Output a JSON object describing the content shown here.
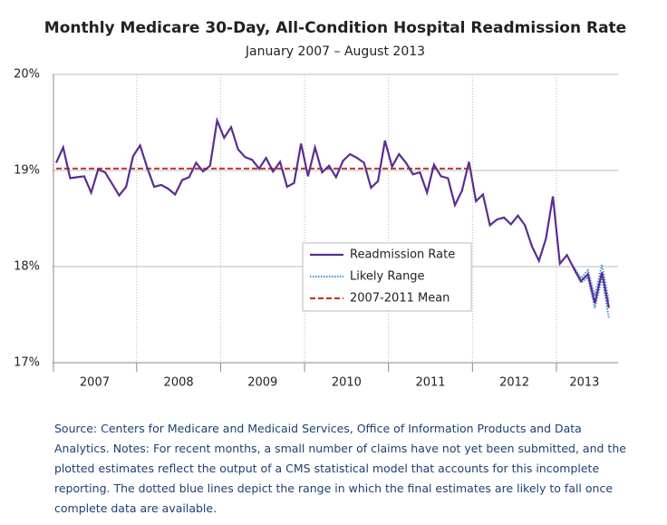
{
  "chart_data": {
    "type": "line",
    "title": "Monthly Medicare 30-Day, All-Condition Hospital Readmission Rate",
    "subtitle": "January 2007 – August 2013",
    "categories": [
      "2007",
      null,
      null,
      null,
      null,
      null,
      null,
      null,
      null,
      null,
      null,
      null,
      "2008",
      null,
      null,
      null,
      null,
      null,
      null,
      null,
      null,
      null,
      null,
      null,
      "2009",
      null,
      null,
      null,
      null,
      null,
      null,
      null,
      null,
      null,
      null,
      null,
      "2010",
      null,
      null,
      null,
      null,
      null,
      null,
      null,
      null,
      null,
      null,
      null,
      "2011",
      null,
      null,
      null,
      null,
      null,
      null,
      null,
      null,
      null,
      null,
      null,
      "2012",
      null,
      null,
      null,
      null,
      null,
      null,
      null,
      null,
      null,
      null,
      null,
      "2013",
      null,
      null,
      null,
      null,
      null,
      null,
      null
    ],
    "series": [
      {
        "name": "Readmission Rate",
        "color": "#5b2d91",
        "style": "solid",
        "values": [
          19.08,
          19.24,
          18.92,
          18.93,
          18.94,
          18.77,
          19.01,
          18.98,
          18.86,
          18.74,
          18.83,
          19.15,
          19.26,
          19.03,
          18.83,
          18.85,
          18.81,
          18.75,
          18.9,
          18.93,
          19.08,
          18.99,
          19.05,
          19.52,
          19.34,
          19.45,
          19.22,
          19.14,
          19.11,
          19.02,
          19.13,
          18.99,
          19.09,
          18.83,
          18.87,
          19.28,
          18.94,
          19.24,
          18.98,
          19.05,
          18.93,
          19.1,
          19.17,
          19.13,
          19.08,
          18.82,
          18.89,
          19.31,
          19.04,
          19.17,
          19.08,
          18.96,
          18.98,
          18.77,
          19.06,
          18.94,
          18.92,
          18.64,
          18.79,
          19.09,
          18.68,
          18.75,
          18.43,
          18.49,
          18.51,
          18.44,
          18.53,
          18.43,
          18.21,
          18.06,
          18.29,
          18.73,
          18.03,
          18.12,
          17.98,
          17.85,
          17.92,
          17.62,
          17.94,
          17.57
        ]
      },
      {
        "name": "Likely Range",
        "color": "#4a8fc9",
        "style": "dotted",
        "values": [
          null,
          null,
          null,
          null,
          null,
          null,
          null,
          null,
          null,
          null,
          null,
          null,
          null,
          null,
          null,
          null,
          null,
          null,
          null,
          null,
          null,
          null,
          null,
          null,
          null,
          null,
          null,
          null,
          null,
          null,
          null,
          null,
          null,
          null,
          null,
          null,
          null,
          null,
          null,
          null,
          null,
          null,
          null,
          null,
          null,
          null,
          null,
          null,
          null,
          null,
          null,
          null,
          null,
          null,
          null,
          null,
          null,
          null,
          null,
          null,
          null,
          null,
          null,
          null,
          null,
          null,
          null,
          null,
          null,
          null,
          null,
          null,
          null,
          null,
          17.99,
          17.88,
          17.96,
          17.7,
          18.02,
          17.64
        ],
        "values_low": [
          null,
          null,
          null,
          null,
          null,
          null,
          null,
          null,
          null,
          null,
          null,
          null,
          null,
          null,
          null,
          null,
          null,
          null,
          null,
          null,
          null,
          null,
          null,
          null,
          null,
          null,
          null,
          null,
          null,
          null,
          null,
          null,
          null,
          null,
          null,
          null,
          null,
          null,
          null,
          null,
          null,
          null,
          null,
          null,
          null,
          null,
          null,
          null,
          null,
          null,
          null,
          null,
          null,
          null,
          null,
          null,
          null,
          null,
          null,
          null,
          null,
          null,
          null,
          null,
          null,
          null,
          null,
          null,
          null,
          null,
          null,
          null,
          null,
          null,
          17.97,
          17.83,
          17.89,
          17.57,
          17.88,
          17.46
        ]
      },
      {
        "name": "2007-2011 Mean",
        "color": "#c0392b",
        "style": "dashed",
        "values": [
          19.02,
          19.02,
          19.02,
          19.02,
          19.02,
          19.02,
          19.02,
          19.02,
          19.02,
          19.02,
          19.02,
          19.02,
          19.02,
          19.02,
          19.02,
          19.02,
          19.02,
          19.02,
          19.02,
          19.02,
          19.02,
          19.02,
          19.02,
          19.02,
          19.02,
          19.02,
          19.02,
          19.02,
          19.02,
          19.02,
          19.02,
          19.02,
          19.02,
          19.02,
          19.02,
          19.02,
          19.02,
          19.02,
          19.02,
          19.02,
          19.02,
          19.02,
          19.02,
          19.02,
          19.02,
          19.02,
          19.02,
          19.02,
          19.02,
          19.02,
          19.02,
          19.02,
          19.02,
          19.02,
          19.02,
          19.02,
          19.02,
          19.02,
          19.02,
          19.02,
          null,
          null,
          null,
          null,
          null,
          null,
          null,
          null,
          null,
          null,
          null,
          null,
          null,
          null,
          null,
          null,
          null,
          null,
          null,
          null
        ]
      }
    ],
    "ylim": [
      17,
      20
    ],
    "yticks": [
      {
        "value": 17,
        "label": "17%"
      },
      {
        "value": 18,
        "label": "18%"
      },
      {
        "value": 19,
        "label": "19%"
      },
      {
        "value": 20,
        "label": "20%"
      }
    ],
    "grid": true,
    "legend": "center-right",
    "source": "Source: Centers for Medicare and Medicaid Services, Office of Information Products and Data Analytics. Notes: For recent months, a small number of claims have not yet been submitted, and the plotted estimates reflect the output of a CMS statistical model that accounts for this incomplete reporting. The dotted blue lines depict the range in which the final estimates are likely to fall once complete data are available."
  }
}
